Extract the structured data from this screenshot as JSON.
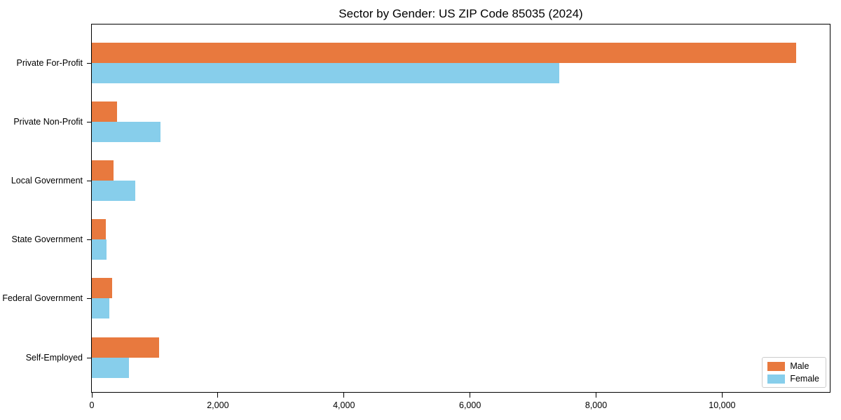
{
  "title": "Sector by Gender: US ZIP Code 85035 (2024)",
  "chart_data": {
    "type": "bar",
    "orientation": "horizontal",
    "title": "Sector by Gender: US ZIP Code 85035 (2024)",
    "categories": [
      "Private For-Profit",
      "Private Non-Profit",
      "Local Government",
      "State Government",
      "Federal Government",
      "Self-Employed"
    ],
    "series": [
      {
        "name": "Male",
        "color": "#e8793e",
        "values": [
          11170,
          400,
          340,
          220,
          320,
          1070
        ]
      },
      {
        "name": "Female",
        "color": "#87ceeb",
        "values": [
          7420,
          1090,
          690,
          235,
          280,
          590
        ]
      }
    ],
    "xlabel": "",
    "ylabel": "",
    "xlim": [
      0,
      11730
    ],
    "xticks": [
      0,
      2000,
      4000,
      6000,
      8000,
      10000
    ],
    "xtick_labels": [
      "0",
      "2,000",
      "4,000",
      "6,000",
      "8,000",
      "10,000"
    ],
    "grid": false,
    "legend_position": "lower right"
  },
  "legend": {
    "items": [
      {
        "label": "Male",
        "color": "#e8793e"
      },
      {
        "label": "Female",
        "color": "#87ceeb"
      }
    ]
  }
}
